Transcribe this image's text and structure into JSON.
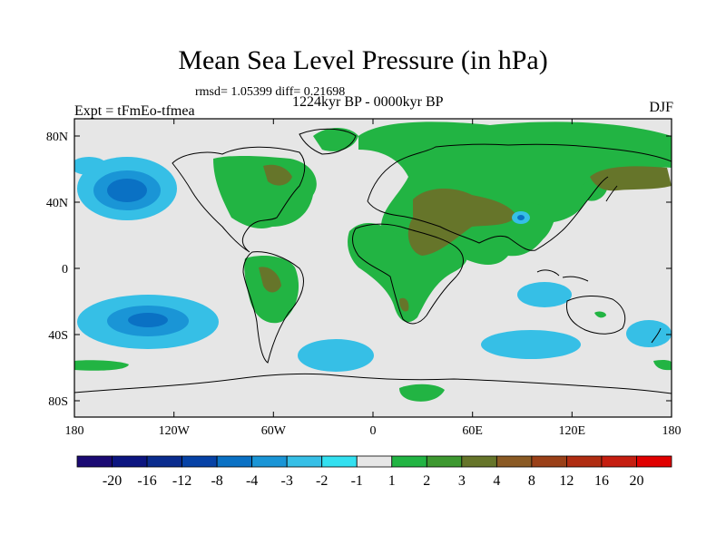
{
  "title": "Mean Sea Level Pressure (in hPa)",
  "stats": {
    "rmsd_label": "rmsd= 1.05399",
    "diff_label": "diff= 0.21698"
  },
  "period": "1224kyr BP - 0000kyr BP",
  "experiment": "Expt = tFmEo-tfmea",
  "season": "DJF",
  "axes": {
    "lat_ticks": [
      "80N",
      "40N",
      "0",
      "40S",
      "80S"
    ],
    "lon_ticks": [
      "180",
      "120W",
      "60W",
      "0",
      "60E",
      "120E",
      "180"
    ]
  },
  "colorbar": {
    "labels": [
      "-20",
      "-16",
      "-12",
      "-8",
      "-4",
      "-3",
      "-2",
      "-1",
      "1",
      "2",
      "3",
      "4",
      "8",
      "12",
      "16",
      "20"
    ],
    "colors": [
      "#1b0a73",
      "#0c1580",
      "#0a2c8e",
      "#0642a6",
      "#0a71c4",
      "#1a95d6",
      "#36bfe6",
      "#33e0f0",
      "#e6e6e6",
      "#22b443",
      "#3d9830",
      "#66752a",
      "#8a5a24",
      "#9a4018",
      "#b02d12",
      "#c51e10",
      "#e00000"
    ]
  },
  "map": {
    "background_color": "#e6e6e6",
    "positive_colors": [
      "#22b443",
      "#66752a"
    ],
    "negative_colors": [
      "#36bfe6",
      "#1a95d6",
      "#0a71c4"
    ]
  }
}
